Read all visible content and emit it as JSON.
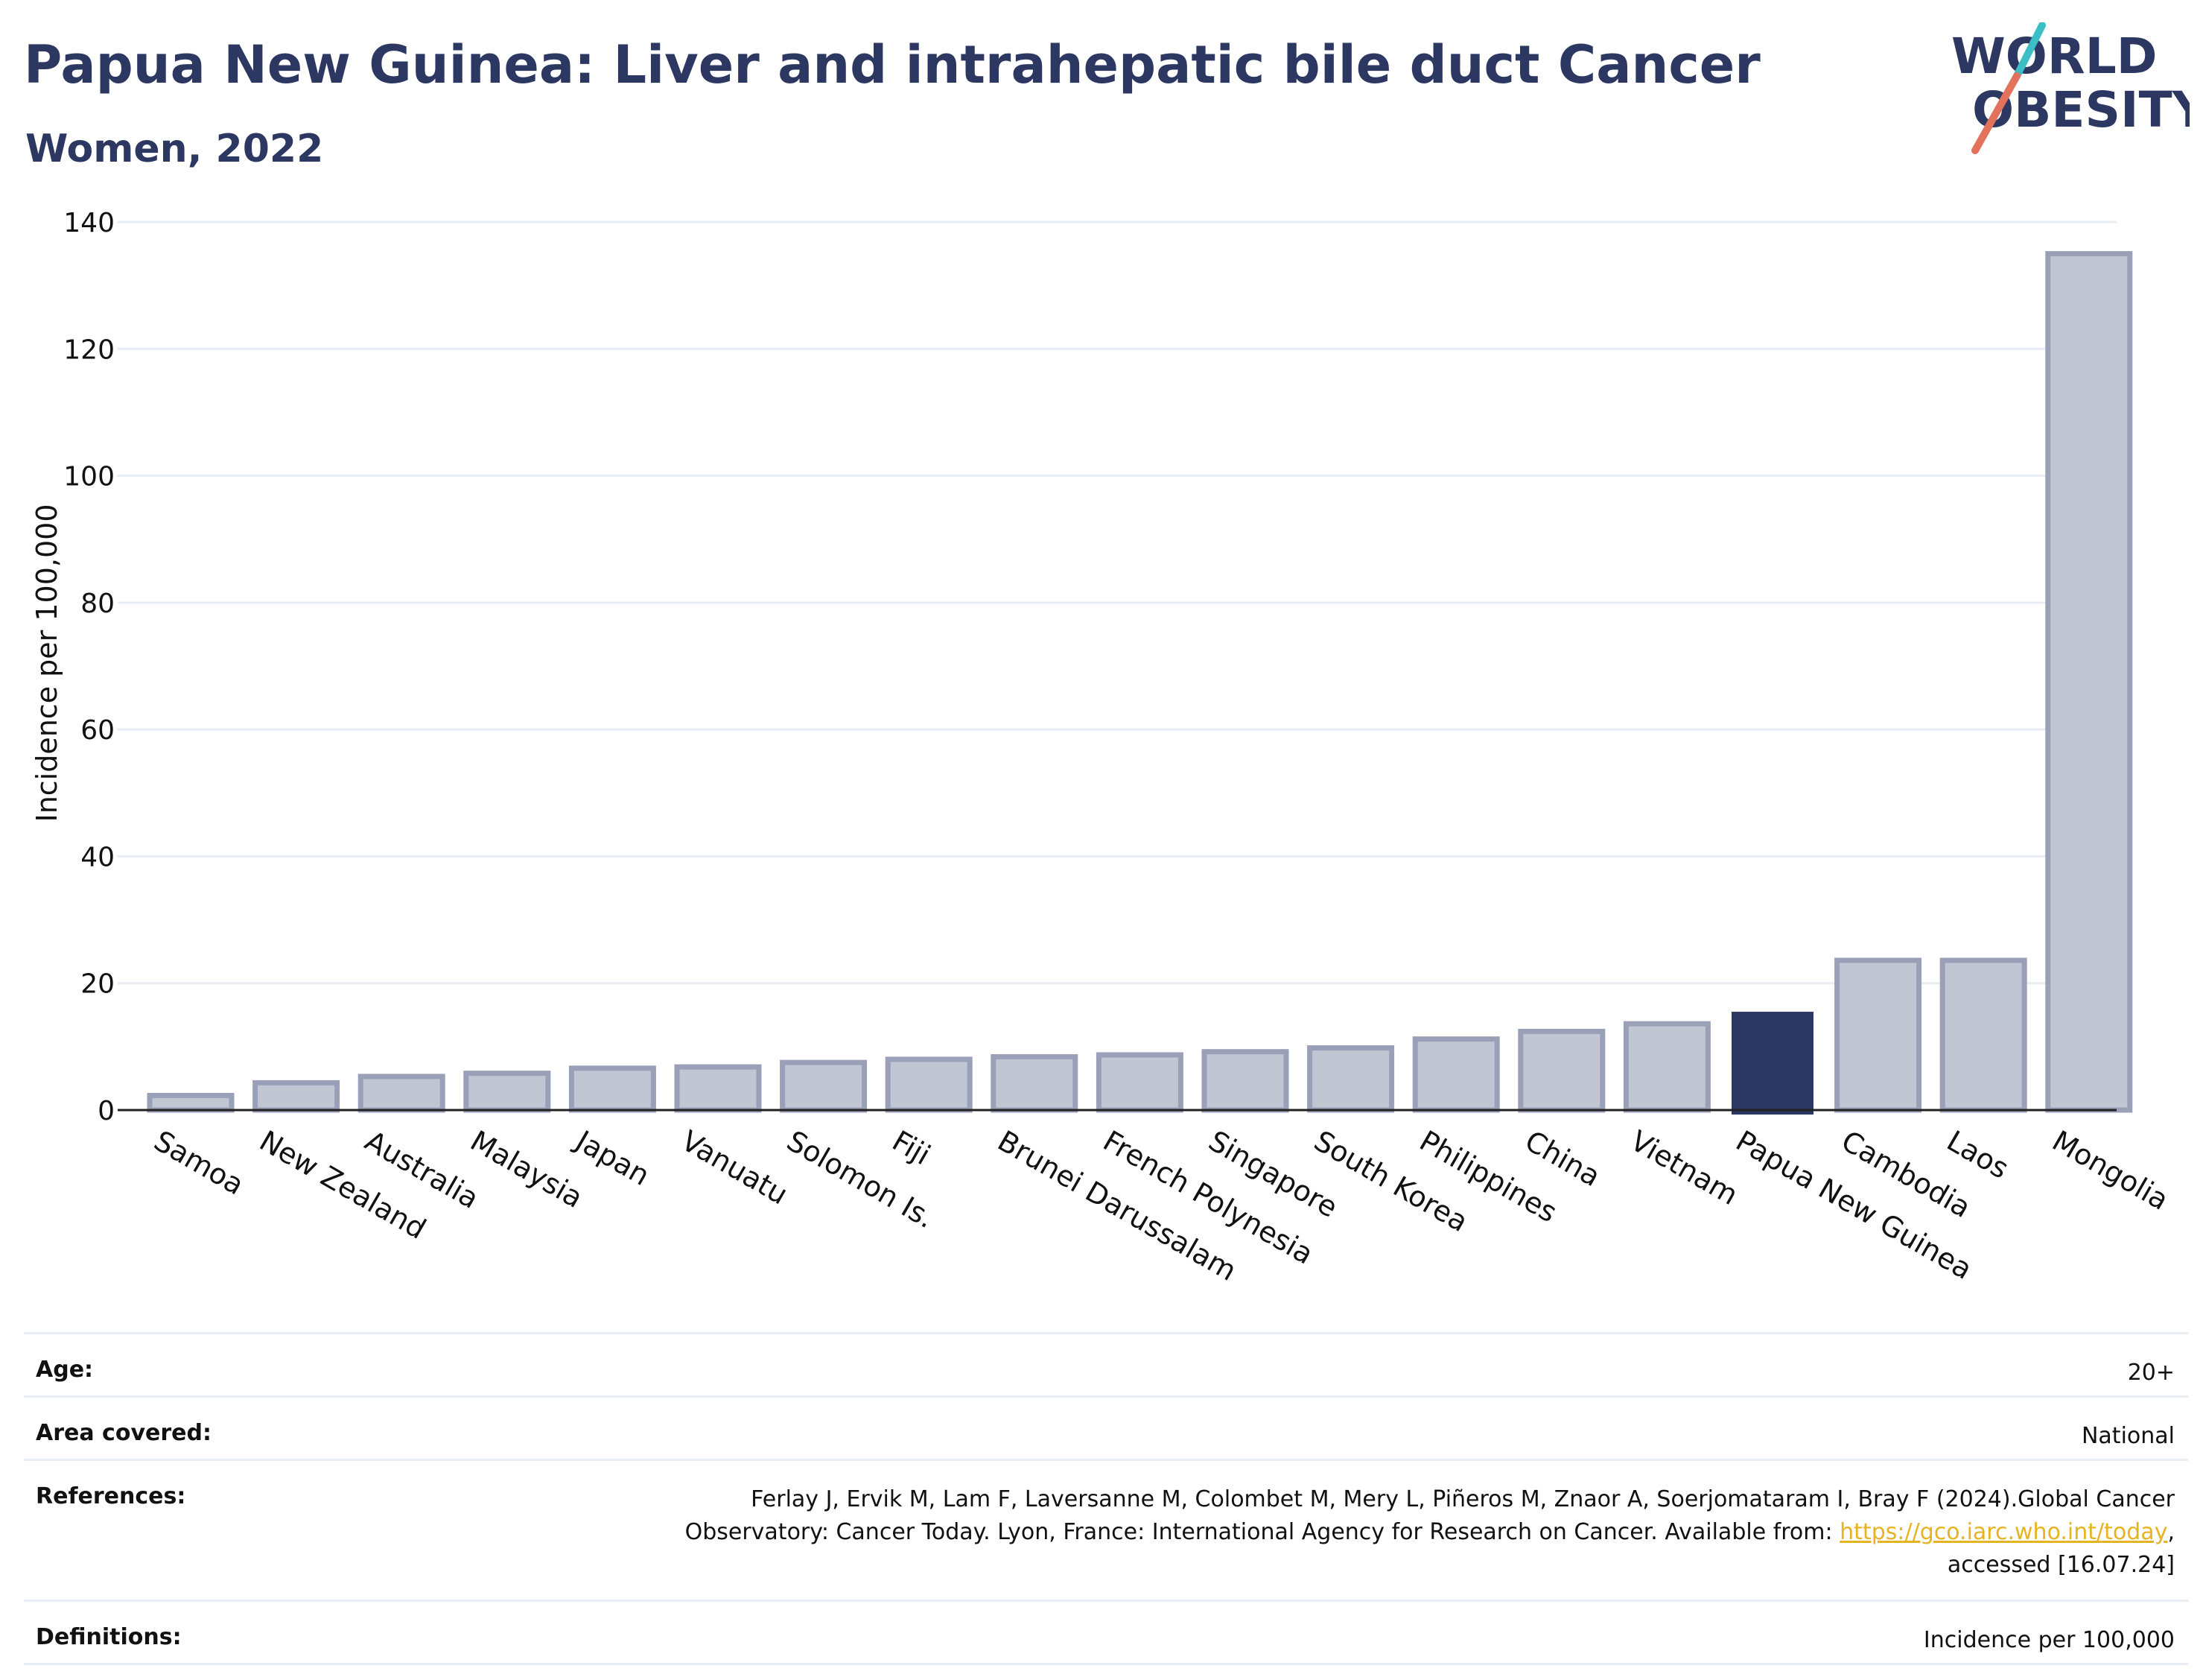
{
  "header": {
    "title": "Papua New Guinea: Liver and intrahepatic bile duct Cancer",
    "subtitle": "Women, 2022"
  },
  "logo": {
    "line1": "WORLD",
    "line2": "OBESITY",
    "colors": {
      "text": "#2c3762",
      "slash_red": "#e2725b",
      "slash_teal": "#3bbfc4"
    }
  },
  "chart_data": {
    "type": "bar",
    "ylabel": "Incidence per 100,000",
    "xlabel": "",
    "ylim": [
      0,
      140
    ],
    "yticks": [
      0,
      20,
      40,
      60,
      80,
      100,
      120,
      140
    ],
    "grid": true,
    "highlight": "Papua New Guinea",
    "colors": {
      "bar": "#c2c5d2",
      "bar_edge": "#9aa0b8",
      "highlight": "#2c3762"
    },
    "categories": [
      "Samoa",
      "New Zealand",
      "Australia",
      "Malaysia",
      "Japan",
      "Vanuatu",
      "Solomon Is.",
      "Fiji",
      "Brunei Darussalam",
      "French Polynesia",
      "Singapore",
      "South Korea",
      "Philippines",
      "China",
      "Vietnam",
      "Papua New Guinea",
      "Cambodia",
      "Laos",
      "Mongolia"
    ],
    "values": [
      2.3,
      4.3,
      5.3,
      5.8,
      6.6,
      6.8,
      7.5,
      8.0,
      8.4,
      8.7,
      9.2,
      9.8,
      11.2,
      12.4,
      13.6,
      15.5,
      23.6,
      23.6,
      135.0
    ]
  },
  "info": {
    "age_label": "Age:",
    "age_value": "20+",
    "area_label": "Area covered:",
    "area_value": "National",
    "references_label": "References:",
    "references_line1": "Ferlay J, Ervik M, Lam F, Laversanne M, Colombet M, Mery L, Piñeros M, Znaor A, Soerjomataram I, Bray F (2024).Global Cancer",
    "references_line2": "Observatory: Cancer Today. Lyon, France: International Agency for Research on Cancer. Available from: ",
    "references_link": "https://gco.iarc.who.int/today",
    "references_line2_end": ",",
    "references_line3": "accessed [16.07.24]",
    "definitions_label": "Definitions:",
    "definitions_value": "Incidence per 100,000"
  }
}
